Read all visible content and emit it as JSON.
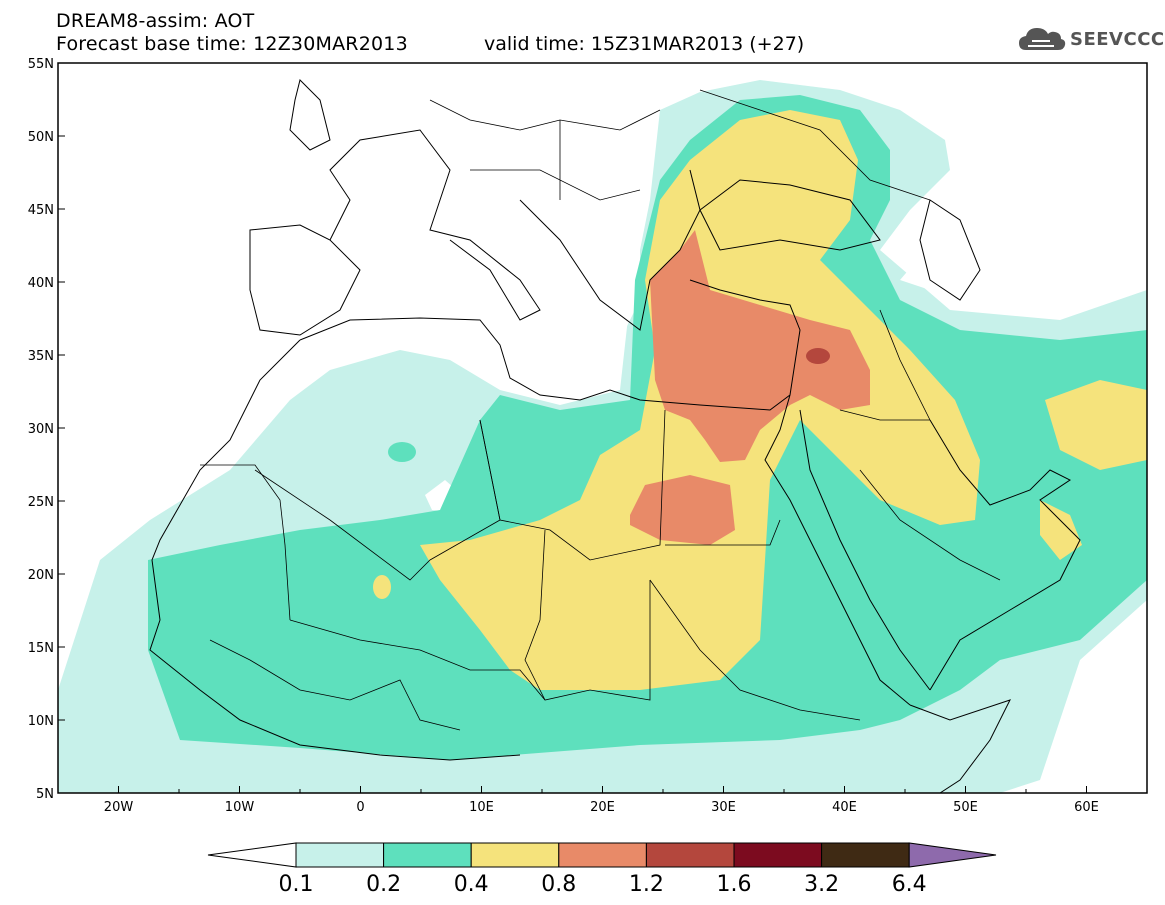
{
  "header": {
    "title_line1": "DREAM8-assim: AOT",
    "base_time": "Forecast base time: 12Z30MAR2013",
    "valid_time": "valid time: 15Z31MAR2013 (+27)",
    "logo_text": "SEEVCCC",
    "logo_icon": "cloud-icon"
  },
  "map": {
    "variable": "AOT",
    "projection": "lat-lon",
    "lon_range": [
      -25,
      65
    ],
    "lat_range": [
      5,
      55
    ],
    "lon_ticks": [
      "20W",
      "10W",
      "0",
      "10E",
      "20E",
      "30E",
      "40E",
      "50E",
      "60E"
    ],
    "lat_ticks": [
      "55N",
      "50N",
      "45N",
      "40N",
      "35N",
      "30N",
      "25N",
      "20N",
      "15N",
      "10N",
      "5N"
    ],
    "max_region": "eastern Mediterranean / Turkey-Syria",
    "peak_class": "1.2-1.6"
  },
  "colorbar": {
    "labels": [
      "0.1",
      "0.2",
      "0.4",
      "0.8",
      "1.2",
      "1.6",
      "3.2",
      "6.4"
    ],
    "colors": [
      "#ffffff",
      "#c7f1ea",
      "#5ee0bd",
      "#f5e37c",
      "#e88a68",
      "#b4473d",
      "#7c0b1f",
      "#3f2a14",
      "#8e6aac"
    ]
  },
  "colors": {
    "c1": "#c7f1ea",
    "c2": "#5ee0bd",
    "c3": "#f5e37c",
    "c4": "#e88a68",
    "c5": "#b4473d",
    "border": "#000000"
  }
}
